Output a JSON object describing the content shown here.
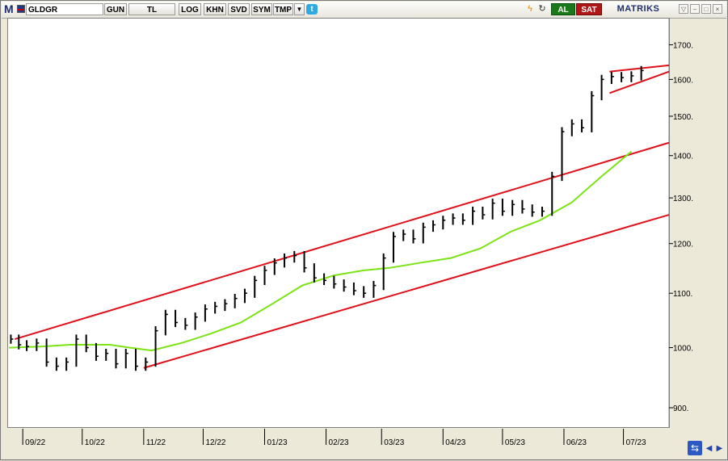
{
  "toolbar": {
    "logo": "M",
    "symbol": "GLDGR",
    "buttons": [
      "GUN",
      "TL",
      "LOG",
      "KHN",
      "SVD",
      "SYM",
      "TMP"
    ],
    "buy_label": "AL",
    "sell_label": "SAT",
    "brand": "MATRIKS"
  },
  "chart_data": {
    "type": "line",
    "title": "",
    "xlabel": "",
    "ylabel": "",
    "scale": "log",
    "ylim": [
      870,
      1780
    ],
    "y_ticks": [
      1700,
      1600,
      1500,
      1400,
      1300,
      1200,
      1100,
      1000,
      900
    ],
    "y_tick_suffix": ".",
    "x_tick_labels": [
      "09/22",
      "10/22",
      "11/22",
      "12/22",
      "01/23",
      "02/23",
      "03/23",
      "04/23",
      "05/23",
      "06/23",
      "07/23"
    ],
    "x_tick_dates": [
      "2022-09-01",
      "2022-10-01",
      "2022-11-01",
      "2022-12-01",
      "2023-01-01",
      "2023-02-01",
      "2023-03-01",
      "2023-04-01",
      "2023-05-01",
      "2023-06-01",
      "2023-07-01"
    ],
    "x_range": [
      "2022-08-25",
      "2023-07-24"
    ],
    "colors": {
      "bars": "#000000",
      "ma": "#7ce314",
      "channel": "#e0101a",
      "pennant_line": "#1a2a6a"
    },
    "price_series": {
      "name": "",
      "dates": [
        "2022-08-26",
        "2022-08-30",
        "2022-09-03",
        "2022-09-08",
        "2022-09-13",
        "2022-09-18",
        "2022-09-23",
        "2022-09-28",
        "2022-10-03",
        "2022-10-08",
        "2022-10-13",
        "2022-10-18",
        "2022-10-23",
        "2022-10-28",
        "2022-11-02",
        "2022-11-07",
        "2022-11-12",
        "2022-11-17",
        "2022-11-22",
        "2022-11-27",
        "2022-12-02",
        "2022-12-07",
        "2022-12-12",
        "2022-12-17",
        "2022-12-22",
        "2022-12-27",
        "2023-01-01",
        "2023-01-06",
        "2023-01-11",
        "2023-01-16",
        "2023-01-21",
        "2023-01-26",
        "2023-01-31",
        "2023-02-05",
        "2023-02-10",
        "2023-02-15",
        "2023-02-20",
        "2023-02-25",
        "2023-03-02",
        "2023-03-07",
        "2023-03-12",
        "2023-03-17",
        "2023-03-22",
        "2023-03-27",
        "2023-04-01",
        "2023-04-06",
        "2023-04-11",
        "2023-04-16",
        "2023-04-21",
        "2023-04-26",
        "2023-05-01",
        "2023-05-06",
        "2023-05-11",
        "2023-05-16",
        "2023-05-21",
        "2023-05-26",
        "2023-05-31",
        "2023-06-05",
        "2023-06-10",
        "2023-06-15",
        "2023-06-20",
        "2023-06-25",
        "2023-06-30",
        "2023-07-05",
        "2023-07-10"
      ],
      "values": [
        1015,
        1005,
        1002,
        1008,
        975,
        968,
        975,
        1015,
        1000,
        985,
        990,
        972,
        990,
        968,
        975,
        1030,
        1060,
        1045,
        1040,
        1055,
        1070,
        1075,
        1080,
        1090,
        1100,
        1125,
        1145,
        1160,
        1170,
        1175,
        1150,
        1130,
        1125,
        1118,
        1112,
        1105,
        1100,
        1115,
        1170,
        1215,
        1220,
        1210,
        1235,
        1240,
        1250,
        1255,
        1250,
        1270,
        1262,
        1288,
        1270,
        1285,
        1275,
        1268,
        1270,
        1350,
        1460,
        1480,
        1470,
        1555,
        1600,
        1608,
        1605,
        1610,
        1625
      ]
    },
    "ma_series": {
      "name": "",
      "dates": [
        "2022-08-25",
        "2022-09-10",
        "2022-09-25",
        "2022-10-15",
        "2022-10-25",
        "2022-11-05",
        "2022-11-20",
        "2022-12-05",
        "2022-12-20",
        "2023-01-05",
        "2023-01-20",
        "2023-02-05",
        "2023-02-20",
        "2023-03-05",
        "2023-03-20",
        "2023-04-05",
        "2023-04-20",
        "2023-05-05",
        "2023-05-20",
        "2023-06-05",
        "2023-06-20",
        "2023-07-05"
      ],
      "values": [
        1000,
        1002,
        1005,
        1005,
        1000,
        995,
        1008,
        1025,
        1045,
        1080,
        1115,
        1135,
        1145,
        1150,
        1160,
        1170,
        1190,
        1225,
        1250,
        1290,
        1350,
        1410
      ]
    },
    "channel_upper": {
      "dates": [
        "2022-08-28",
        "2023-07-24"
      ],
      "values": [
        1015,
        1432
      ]
    },
    "channel_lower": {
      "dates": [
        "2022-11-01",
        "2023-07-24"
      ],
      "values": [
        965,
        1262
      ]
    },
    "pennant_upper": {
      "dates": [
        "2023-06-24",
        "2023-07-24"
      ],
      "values": [
        1622,
        1640
      ]
    },
    "pennant_lower": {
      "dates": [
        "2023-06-24",
        "2023-07-24"
      ],
      "values": [
        1562,
        1622
      ]
    },
    "grid": false,
    "legend": "none"
  }
}
